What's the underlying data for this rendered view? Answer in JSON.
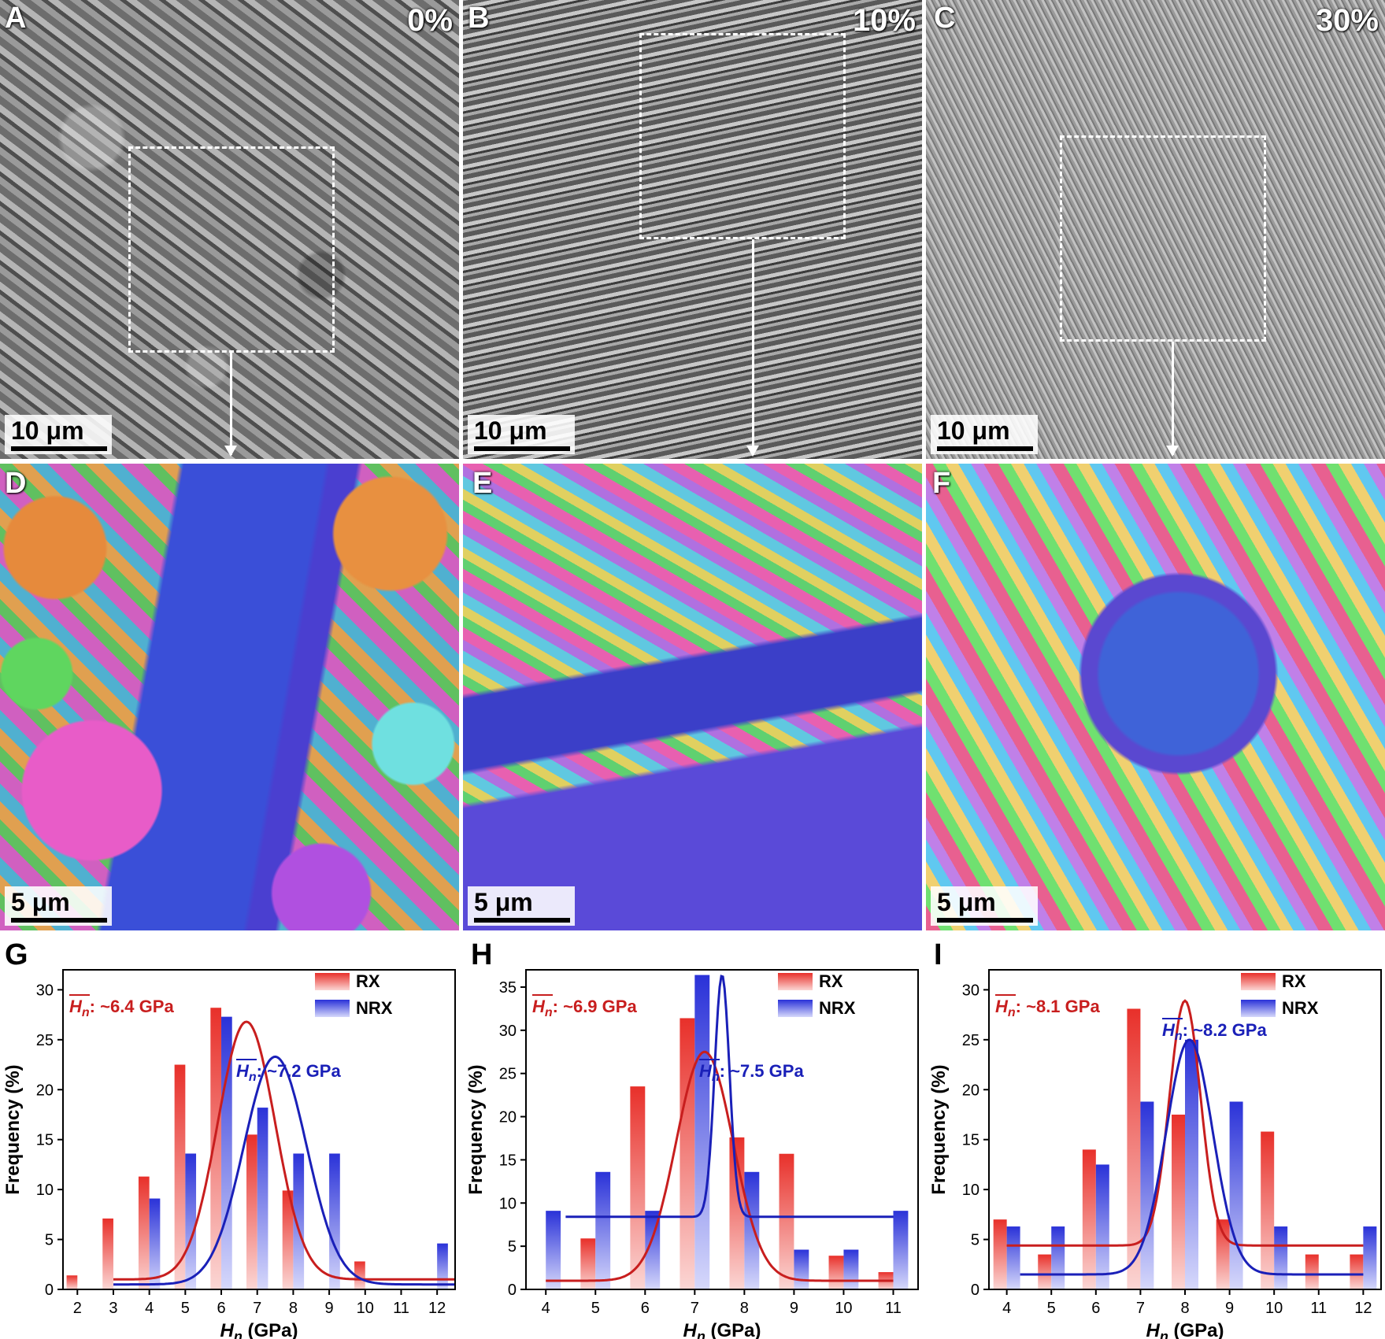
{
  "panels": {
    "A": {
      "label": "A",
      "strain": "0%",
      "scale": "10 μm"
    },
    "B": {
      "label": "B",
      "strain": "10%",
      "scale": "10 μm"
    },
    "C": {
      "label": "C",
      "strain": "30%",
      "scale": "10 μm"
    },
    "D": {
      "label": "D",
      "scale": "5 μm"
    },
    "E": {
      "label": "E",
      "scale": "5 μm"
    },
    "F": {
      "label": "F",
      "scale": "5 μm"
    },
    "G": {
      "label": "G"
    },
    "H": {
      "label": "H"
    },
    "I": {
      "label": "I"
    }
  },
  "colors": {
    "rx": "#e8302a",
    "nrx": "#2a32d8",
    "rx_curve": "#c81e1e",
    "nrx_curve": "#1a20b8"
  },
  "chart_data": [
    {
      "id": "G",
      "type": "bar",
      "xlabel_main": "H",
      "xlabel_sub": "n",
      "xlabel_unit": " (GPa)",
      "ylabel": "Frequency (%)",
      "xlim": [
        1.6,
        12.5
      ],
      "ylim": [
        0,
        32
      ],
      "xticks": [
        2,
        3,
        4,
        5,
        6,
        7,
        8,
        9,
        10,
        11,
        12
      ],
      "yticks": [
        0,
        5,
        10,
        15,
        20,
        25,
        30
      ],
      "legend": [
        "RX",
        "NRX"
      ],
      "annotations": [
        {
          "text": ": ~6.4 GPa",
          "series": "RX",
          "place": "top-left"
        },
        {
          "text": ": ~7.2 GPa",
          "series": "NRX",
          "place": "middle-right"
        }
      ],
      "series": [
        {
          "name": "RX",
          "x": [
            1.85,
            2.85,
            3.85,
            4.85,
            5.85,
            6.85,
            7.85,
            8.85,
            9.85,
            10.85,
            11.85
          ],
          "values": [
            1.4,
            7.1,
            11.3,
            22.5,
            28.2,
            15.5,
            9.9,
            0,
            2.8,
            0,
            0
          ]
        },
        {
          "name": "NRX",
          "x": [
            4.15,
            5.15,
            6.15,
            7.15,
            8.15,
            9.15,
            12.15
          ],
          "values": [
            9.1,
            13.6,
            27.3,
            18.2,
            13.6,
            13.6,
            4.6
          ]
        }
      ],
      "fits": [
        {
          "series": "RX",
          "y0": 1.0,
          "A": 25.8,
          "xc": 6.7,
          "w": 1.6,
          "from": 3.0,
          "to": 12.5
        },
        {
          "series": "NRX",
          "y0": 0.5,
          "A": 22.8,
          "xc": 7.5,
          "w": 1.75,
          "from": 3.0,
          "to": 12.5
        }
      ]
    },
    {
      "id": "H",
      "type": "bar",
      "xlabel_main": "H",
      "xlabel_sub": "n",
      "xlabel_unit": " (GPa)",
      "ylabel": "Frequency (%)",
      "xlim": [
        3.6,
        11.5
      ],
      "ylim": [
        0,
        37
      ],
      "xticks": [
        4,
        5,
        6,
        7,
        8,
        9,
        10,
        11
      ],
      "yticks": [
        0,
        5,
        10,
        15,
        20,
        25,
        30,
        35
      ],
      "legend": [
        "RX",
        "NRX"
      ],
      "annotations": [
        {
          "text": ": ~6.9 GPa",
          "series": "RX",
          "place": "top-left"
        },
        {
          "text": ": ~7.5 GPa",
          "series": "NRX",
          "place": "middle-right"
        }
      ],
      "series": [
        {
          "name": "RX",
          "x": [
            4.85,
            5.85,
            6.85,
            7.85,
            8.85,
            9.85,
            10.85
          ],
          "values": [
            5.9,
            23.5,
            31.4,
            17.6,
            15.7,
            3.9,
            2.0
          ]
        },
        {
          "name": "NRX",
          "x": [
            4.15,
            5.15,
            6.15,
            7.15,
            8.15,
            9.15,
            10.15,
            11.15
          ],
          "values": [
            9.1,
            13.6,
            9.1,
            36.4,
            13.6,
            4.6,
            4.6,
            9.1
          ]
        }
      ],
      "fits": [
        {
          "series": "RX",
          "y0": 1.0,
          "A": 26.5,
          "xc": 7.2,
          "w": 1.15,
          "from": 4.0,
          "to": 11.0
        },
        {
          "series": "NRX",
          "y0": 8.4,
          "A": 28.0,
          "xc": 7.55,
          "w": 0.3,
          "from": 4.4,
          "to": 11.0
        }
      ]
    },
    {
      "id": "I",
      "type": "bar",
      "xlabel_main": "H",
      "xlabel_sub": "n",
      "xlabel_unit": " (GPa)",
      "ylabel": "Frequency (%)",
      "xlim": [
        3.6,
        12.4
      ],
      "ylim": [
        0,
        32
      ],
      "xticks": [
        4,
        5,
        6,
        7,
        8,
        9,
        10,
        11,
        12
      ],
      "yticks": [
        0,
        5,
        10,
        15,
        20,
        25,
        30
      ],
      "legend": [
        "RX",
        "NRX"
      ],
      "annotations": [
        {
          "text": ": ~8.1 GPa",
          "series": "RX",
          "place": "top-left"
        },
        {
          "text": ": ~8.2 GPa",
          "series": "NRX",
          "place": "upper-right"
        }
      ],
      "series": [
        {
          "name": "RX",
          "x": [
            3.85,
            4.85,
            5.85,
            6.85,
            7.85,
            8.85,
            9.85,
            10.85,
            11.85
          ],
          "values": [
            7.0,
            3.5,
            14.0,
            28.1,
            17.5,
            7.0,
            15.8,
            3.5,
            3.5
          ]
        },
        {
          "name": "NRX",
          "x": [
            4.15,
            5.15,
            6.15,
            7.15,
            8.15,
            9.15,
            10.15,
            12.15
          ],
          "values": [
            6.3,
            6.3,
            12.5,
            18.8,
            25.0,
            18.8,
            6.3,
            6.3
          ]
        }
      ],
      "fits": [
        {
          "series": "RX",
          "y0": 4.4,
          "A": 24.5,
          "xc": 8.0,
          "w": 0.7,
          "from": 4.0,
          "to": 12.0
        },
        {
          "series": "NRX",
          "y0": 1.5,
          "A": 23.5,
          "xc": 8.1,
          "w": 1.05,
          "from": 4.3,
          "to": 12.0
        }
      ]
    }
  ]
}
